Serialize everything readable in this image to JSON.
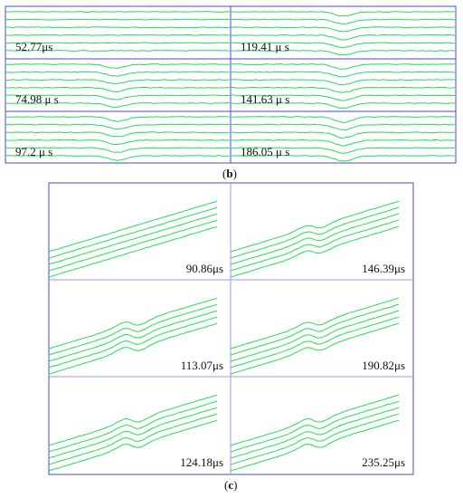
{
  "colors": {
    "fringe": "#22dd55",
    "frame": "#4a4ad8",
    "text": "#111111"
  },
  "panel_b": {
    "caption_open": "(",
    "caption_letter": "b",
    "caption_close": ")",
    "times": [
      "52.77μs",
      "119.41 μ s",
      "74.98 μ s",
      "141.63 μ s",
      "97.2 μ s",
      "186.05 μ s"
    ]
  },
  "panel_c": {
    "caption_open": "(",
    "caption_letter": "c",
    "caption_close": ")",
    "times": [
      "90.86μs",
      "146.39μs",
      "113.07μs",
      "190.82μs",
      "124.18μs",
      "235.25μs"
    ]
  }
}
